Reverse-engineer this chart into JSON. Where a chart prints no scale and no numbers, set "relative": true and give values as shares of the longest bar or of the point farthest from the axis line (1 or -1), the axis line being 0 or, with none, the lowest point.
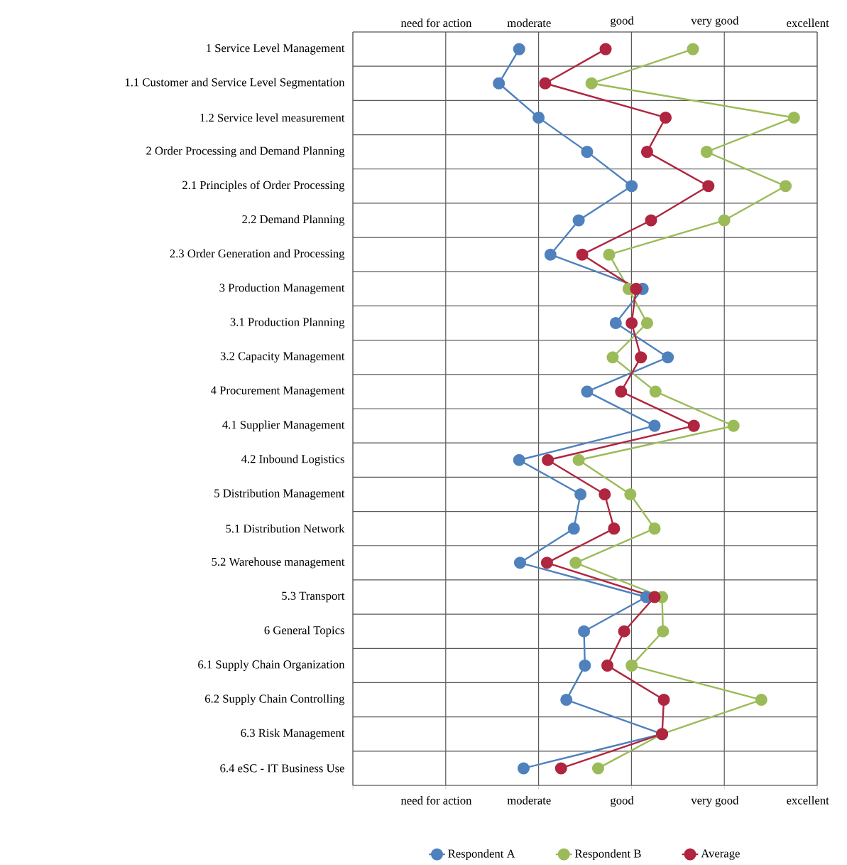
{
  "chart_data": {
    "type": "line",
    "orientation": "horizontal",
    "relative": true,
    "categories": [
      "1 Service Level Management",
      "1.1 Customer and Service Level Segmentation",
      "1.2 Service level measurement",
      "2 Order Processing and Demand Planning",
      "2.1 Principles of Order Processing",
      "2.2 Demand Planning",
      "2.3 Order Generation and Processing",
      "3 Production Management",
      "3.1 Production Planning",
      "3.2 Capacity Management",
      "4 Procurement Management",
      "4.1 Supplier Management",
      "4.2 Inbound Logistics",
      "5 Distribution Management",
      "5.1 Distribution Network",
      "5.2 Warehouse management",
      "5.3 Transport",
      "6 General Topics",
      "6.1 Supply Chain Organization",
      "6.2 Supply Chain Controlling",
      "6.3 Risk Management",
      "6.4 eSC - IT Business Use"
    ],
    "series": [
      {
        "name": "Respondent A",
        "color": "#4f81bd",
        "values": [
          0.377,
          0.331,
          0.421,
          0.531,
          0.632,
          0.512,
          0.448,
          0.657,
          0.596,
          0.714,
          0.531,
          0.684,
          0.377,
          0.516,
          0.501,
          0.379,
          0.665,
          0.524,
          0.526,
          0.484,
          0.701,
          0.387
        ]
      },
      {
        "name": "Respondent B",
        "color": "#9bbb59",
        "values": [
          0.771,
          0.541,
          1,
          0.802,
          0.981,
          0.842,
          0.581,
          0.625,
          0.667,
          0.589,
          0.686,
          0.863,
          0.512,
          0.629,
          0.684,
          0.505,
          0.701,
          0.703,
          0.632,
          0.926,
          0.701,
          0.556
        ]
      },
      {
        "name": "Average",
        "color": "#b0253f",
        "values": [
          0.573,
          0.436,
          0.709,
          0.667,
          0.806,
          0.676,
          0.52,
          0.642,
          0.632,
          0.653,
          0.608,
          0.773,
          0.442,
          0.571,
          0.592,
          0.44,
          0.684,
          0.615,
          0.577,
          0.705,
          0.701,
          0.472
        ]
      }
    ],
    "annotations": [
      "need for action",
      "moderate",
      "good",
      "very good",
      "excellent",
      "need for action",
      "moderate",
      "good",
      "very good",
      "excellent"
    ],
    "grid": true,
    "legend": "bottom",
    "marker": "circle",
    "line_style": "solid"
  }
}
